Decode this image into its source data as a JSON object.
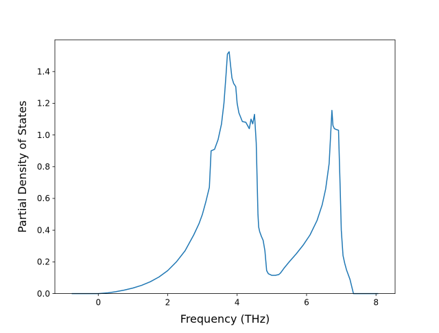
{
  "chart_data": {
    "type": "line",
    "title": "",
    "xlabel": "Frequency (THz)",
    "ylabel": "Partial Density of States",
    "xlim": [
      -1.25,
      8.55
    ],
    "ylim": [
      0.0,
      1.6
    ],
    "xticks": [
      0,
      2,
      4,
      6,
      8
    ],
    "yticks": [
      0.0,
      0.2,
      0.4,
      0.6,
      0.8,
      1.0,
      1.2,
      1.4
    ],
    "xtick_labels": [
      "0",
      "2",
      "4",
      "6",
      "8"
    ],
    "ytick_labels": [
      "0.0",
      "0.2",
      "0.4",
      "0.6",
      "0.8",
      "1.0",
      "1.2",
      "1.4"
    ],
    "grid": false,
    "legend": "none",
    "line_color": "#1f77b4",
    "series": [
      {
        "x": [
          -0.75,
          -0.5,
          -0.25,
          0.0,
          0.25,
          0.5,
          0.75,
          1.0,
          1.25,
          1.5,
          1.75,
          2.0,
          2.25,
          2.5,
          2.75,
          2.9,
          3.0,
          3.1,
          3.2,
          3.25,
          3.3,
          3.35,
          3.45,
          3.55,
          3.62,
          3.68,
          3.72,
          3.77,
          3.81,
          3.85,
          3.9,
          3.96,
          4.0,
          4.05,
          4.15,
          4.25,
          4.35,
          4.4,
          4.45,
          4.5,
          4.55,
          4.6,
          4.62,
          4.65,
          4.7,
          4.75,
          4.8,
          4.85,
          4.9,
          5.0,
          5.1,
          5.2,
          5.25,
          5.35,
          5.5,
          5.7,
          5.9,
          6.1,
          6.3,
          6.45,
          6.55,
          6.65,
          6.7,
          6.73,
          6.76,
          6.8,
          6.85,
          6.92,
          6.97,
          7.0,
          7.05,
          7.1,
          7.15,
          7.25,
          7.35,
          7.4,
          7.6,
          7.9,
          8.05
        ],
        "y": [
          0.0,
          0.0,
          0.0,
          0.0,
          0.004,
          0.012,
          0.022,
          0.035,
          0.052,
          0.075,
          0.105,
          0.145,
          0.2,
          0.27,
          0.37,
          0.44,
          0.5,
          0.58,
          0.67,
          0.9,
          0.905,
          0.91,
          0.97,
          1.07,
          1.2,
          1.38,
          1.51,
          1.525,
          1.44,
          1.36,
          1.325,
          1.305,
          1.2,
          1.14,
          1.085,
          1.08,
          1.04,
          1.1,
          1.07,
          1.13,
          0.95,
          0.5,
          0.42,
          0.39,
          0.36,
          0.335,
          0.27,
          0.145,
          0.125,
          0.115,
          0.115,
          0.12,
          0.13,
          0.16,
          0.2,
          0.25,
          0.305,
          0.37,
          0.46,
          0.56,
          0.66,
          0.82,
          1.03,
          1.155,
          1.06,
          1.04,
          1.035,
          1.03,
          0.65,
          0.4,
          0.24,
          0.19,
          0.15,
          0.09,
          0.0,
          0.0,
          0.0,
          0.0,
          0.0
        ]
      }
    ]
  }
}
